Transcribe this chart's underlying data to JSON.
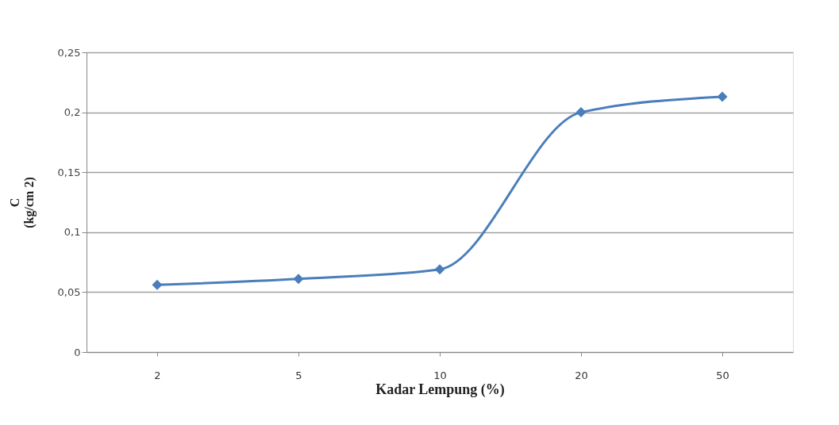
{
  "chart_data": {
    "type": "line",
    "xlabel": "Kadar Lempung (%)",
    "ylabel": "C\n(kg/cm 2)",
    "categories": [
      "2",
      "5",
      "10",
      "20",
      "50"
    ],
    "series": [
      {
        "color": "#4a7ebb",
        "values": [
          0.056,
          0.061,
          0.069,
          0.2,
          0.213
        ]
      }
    ],
    "ylim": [
      0,
      0.25
    ],
    "yticks": [
      0,
      {
        "value": 0.05,
        "label": "0,05"
      },
      {
        "value": 0.1,
        "label": "0,1"
      },
      {
        "value": 0.15,
        "label": "0,15"
      },
      {
        "value": 0.2,
        "label": "0,2"
      },
      {
        "value": 0.25,
        "label": "0,25"
      }
    ],
    "grid": "y",
    "marker": "diamond",
    "line_style": "solid"
  }
}
